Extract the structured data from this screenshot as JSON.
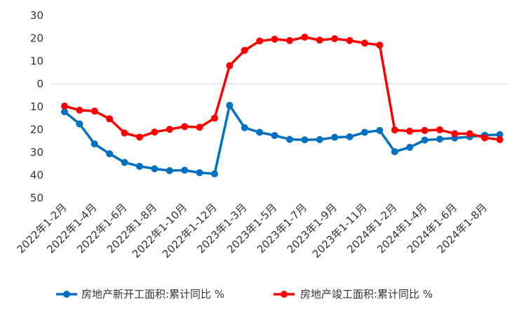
{
  "chart_data": {
    "type": "line",
    "title": "",
    "xlabel": "",
    "ylabel": "",
    "ylim": [
      -50,
      30
    ],
    "yticks": [
      30,
      20,
      10,
      0,
      -10,
      -20,
      -30,
      -40,
      -50
    ],
    "ytick_labels": [
      "30",
      "20",
      "10",
      "0",
      "10",
      "20",
      "30",
      "40",
      "50"
    ],
    "grid": false,
    "legend_position": "bottom",
    "x": [
      "2022年1-2月",
      "2022年1-3月",
      "2022年1-4月",
      "2022年1-5月",
      "2022年1-6月",
      "2022年1-7月",
      "2022年1-8月",
      "2022年1-9月",
      "2022年1-10月",
      "2022年1-11月",
      "2022年1-12月",
      "2023年1-2月",
      "2023年1-3月",
      "2023年1-4月",
      "2023年1-5月",
      "2023年1-6月",
      "2023年1-7月",
      "2023年1-8月",
      "2023年1-9月",
      "2023年1-10月",
      "2023年1-11月",
      "2023年1-12月",
      "2024年1-2月",
      "2024年1-3月",
      "2024年1-4月",
      "2024年1-5月",
      "2024年1-6月",
      "2024年1-7月",
      "2024年1-8月",
      "2024年1-9月"
    ],
    "xtick_labels": [
      "2022年1-2月",
      "2022年1-4月",
      "2022年1-6月",
      "2022年1-8月",
      "2022年1-10月",
      "2022年1-12月",
      "2023年1-3月",
      "2023年1-5月",
      "2023年1-7月",
      "2023年1-9月",
      "2023年1-11月",
      "2024年1-2月",
      "2024年1-4月",
      "2024年1-6月",
      "2024年1-8月"
    ],
    "series": [
      {
        "name": "房地产新开工面积:累计同比 %",
        "color": "#0070C0",
        "values": [
          -12.2,
          -17.5,
          -26.3,
          -30.6,
          -34.4,
          -36.1,
          -37.2,
          -38.0,
          -37.8,
          -38.9,
          -39.4,
          -9.4,
          -19.2,
          -21.2,
          -22.6,
          -24.3,
          -24.5,
          -24.4,
          -23.4,
          -23.2,
          -21.2,
          -20.4,
          -29.7,
          -27.8,
          -24.6,
          -24.2,
          -23.7,
          -23.2,
          -22.5,
          -22.2
        ]
      },
      {
        "name": "房地产竣工面积:累计同比 %",
        "color": "#FF0000",
        "values": [
          -9.7,
          -11.5,
          -11.9,
          -15.3,
          -21.5,
          -23.3,
          -21.1,
          -19.9,
          -18.7,
          -19.0,
          -15.0,
          8.0,
          14.7,
          18.8,
          19.6,
          19.0,
          20.5,
          19.2,
          19.8,
          19.0,
          17.9,
          17.0,
          -20.2,
          -20.7,
          -20.4,
          -20.1,
          -21.8,
          -21.8,
          -23.6,
          -24.4
        ]
      }
    ]
  }
}
